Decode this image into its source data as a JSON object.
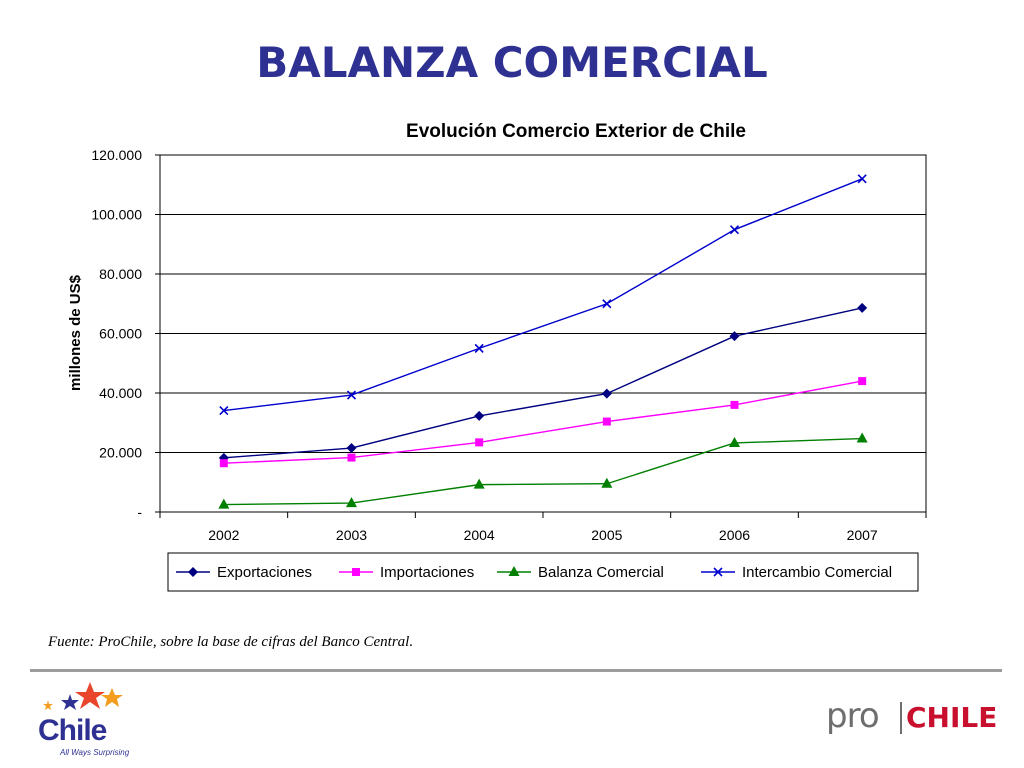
{
  "slide": {
    "title": "BALANZA COMERCIAL",
    "source_note": "Fuente: ProChile, sobre la base de cifras del Banco Central.",
    "logo_left": {
      "word": "Chile",
      "slogan": "All Ways Surprising"
    },
    "logo_right": {
      "pro": "pro",
      "chile": "CHILE"
    }
  },
  "chart_data": {
    "type": "line",
    "title": "Evolución Comercio Exterior de Chile",
    "xlabel": "",
    "ylabel": "millones de US$",
    "categories": [
      "2002",
      "2003",
      "2004",
      "2005",
      "2006",
      "2007"
    ],
    "ylim": [
      0,
      120000
    ],
    "yticks": [
      0,
      20000,
      40000,
      60000,
      80000,
      100000,
      120000
    ],
    "ytick_labels": [
      "-",
      "20.000",
      "40.000",
      "60.000",
      "80.000",
      "100.000",
      "120.000"
    ],
    "grid": true,
    "legend_position": "bottom",
    "series": [
      {
        "name": "Exportaciones",
        "values": [
          18200,
          21500,
          32300,
          39800,
          59100,
          68600
        ],
        "color": "#000080",
        "marker": "diamond"
      },
      {
        "name": "Importaciones",
        "values": [
          16400,
          18300,
          23400,
          30400,
          36000,
          44000
        ],
        "color": "#ff00ff",
        "marker": "square"
      },
      {
        "name": "Balanza Comercial",
        "values": [
          2500,
          3000,
          9200,
          9500,
          23200,
          24700
        ],
        "color": "#008000",
        "marker": "triangle"
      },
      {
        "name": "Intercambio Comercial",
        "values": [
          34100,
          39300,
          55000,
          70000,
          94900,
          112000
        ],
        "color": "#0000cd",
        "marker": "x"
      }
    ]
  }
}
